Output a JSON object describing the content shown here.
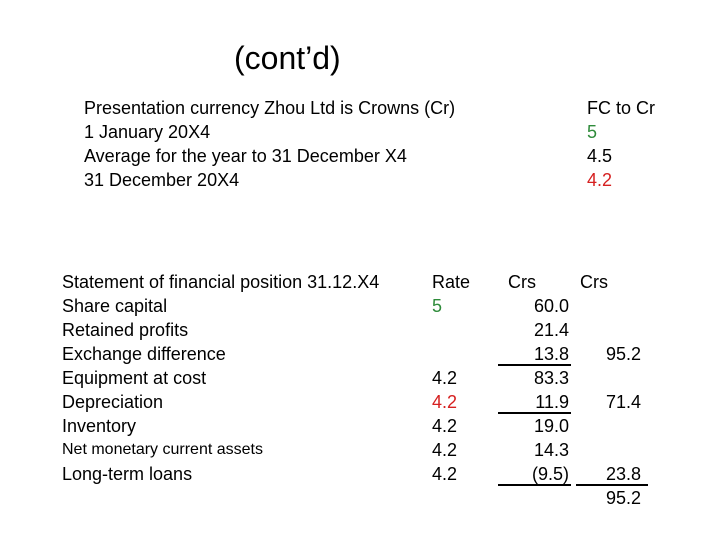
{
  "slide": {
    "title": "(cont’d)",
    "intro": {
      "lines": [
        "Presentation currency Zhou Ltd is Crowns (Cr)",
        "1 January 20X4",
        "Average for the year to 31 December X4",
        "31 December 20X4"
      ],
      "fc_header": "FC to Cr",
      "fc_values": [
        {
          "text": "5",
          "color": "#2e8b3a"
        },
        {
          "text": "4.5",
          "color": "#000000"
        },
        {
          "text": "4.2",
          "color": "#d62020"
        }
      ]
    },
    "table": {
      "headers": {
        "label": "Statement of financial position 31.12.X4",
        "rate": "Rate",
        "crs1": "Crs",
        "crs2": "Crs"
      },
      "rows": [
        {
          "label": "Share capital",
          "rate": "5",
          "rate_color": "#2e8b3a",
          "crs1": "60.0",
          "crs2": ""
        },
        {
          "label": "Retained profits",
          "rate": "",
          "rate_color": "#000000",
          "crs1": "21.4",
          "crs2": ""
        },
        {
          "label": "Exchange difference",
          "rate": "",
          "rate_color": "#000000",
          "crs1": "13.8",
          "crs2": "95.2"
        },
        {
          "label": "Equipment at cost",
          "rate": "4.2",
          "rate_color": "#000000",
          "crs1": "83.3",
          "crs2": ""
        },
        {
          "label": "Depreciation",
          "rate": "4.2",
          "rate_color": "#d62020",
          "crs1": "11.9",
          "crs2": "71.4"
        },
        {
          "label": "Inventory",
          "rate": "4.2",
          "rate_color": "#000000",
          "crs1": "19.0",
          "crs2": ""
        },
        {
          "label": "Net monetary current assets",
          "rate": "4.2",
          "rate_color": "#000000",
          "crs1": "14.3",
          "crs2": ""
        },
        {
          "label": "Long-term loans",
          "rate": "4.2",
          "rate_color": "#000000",
          "crs1": "(9.5)",
          "crs2": "23.8"
        }
      ],
      "grand_total": "95.2"
    }
  }
}
